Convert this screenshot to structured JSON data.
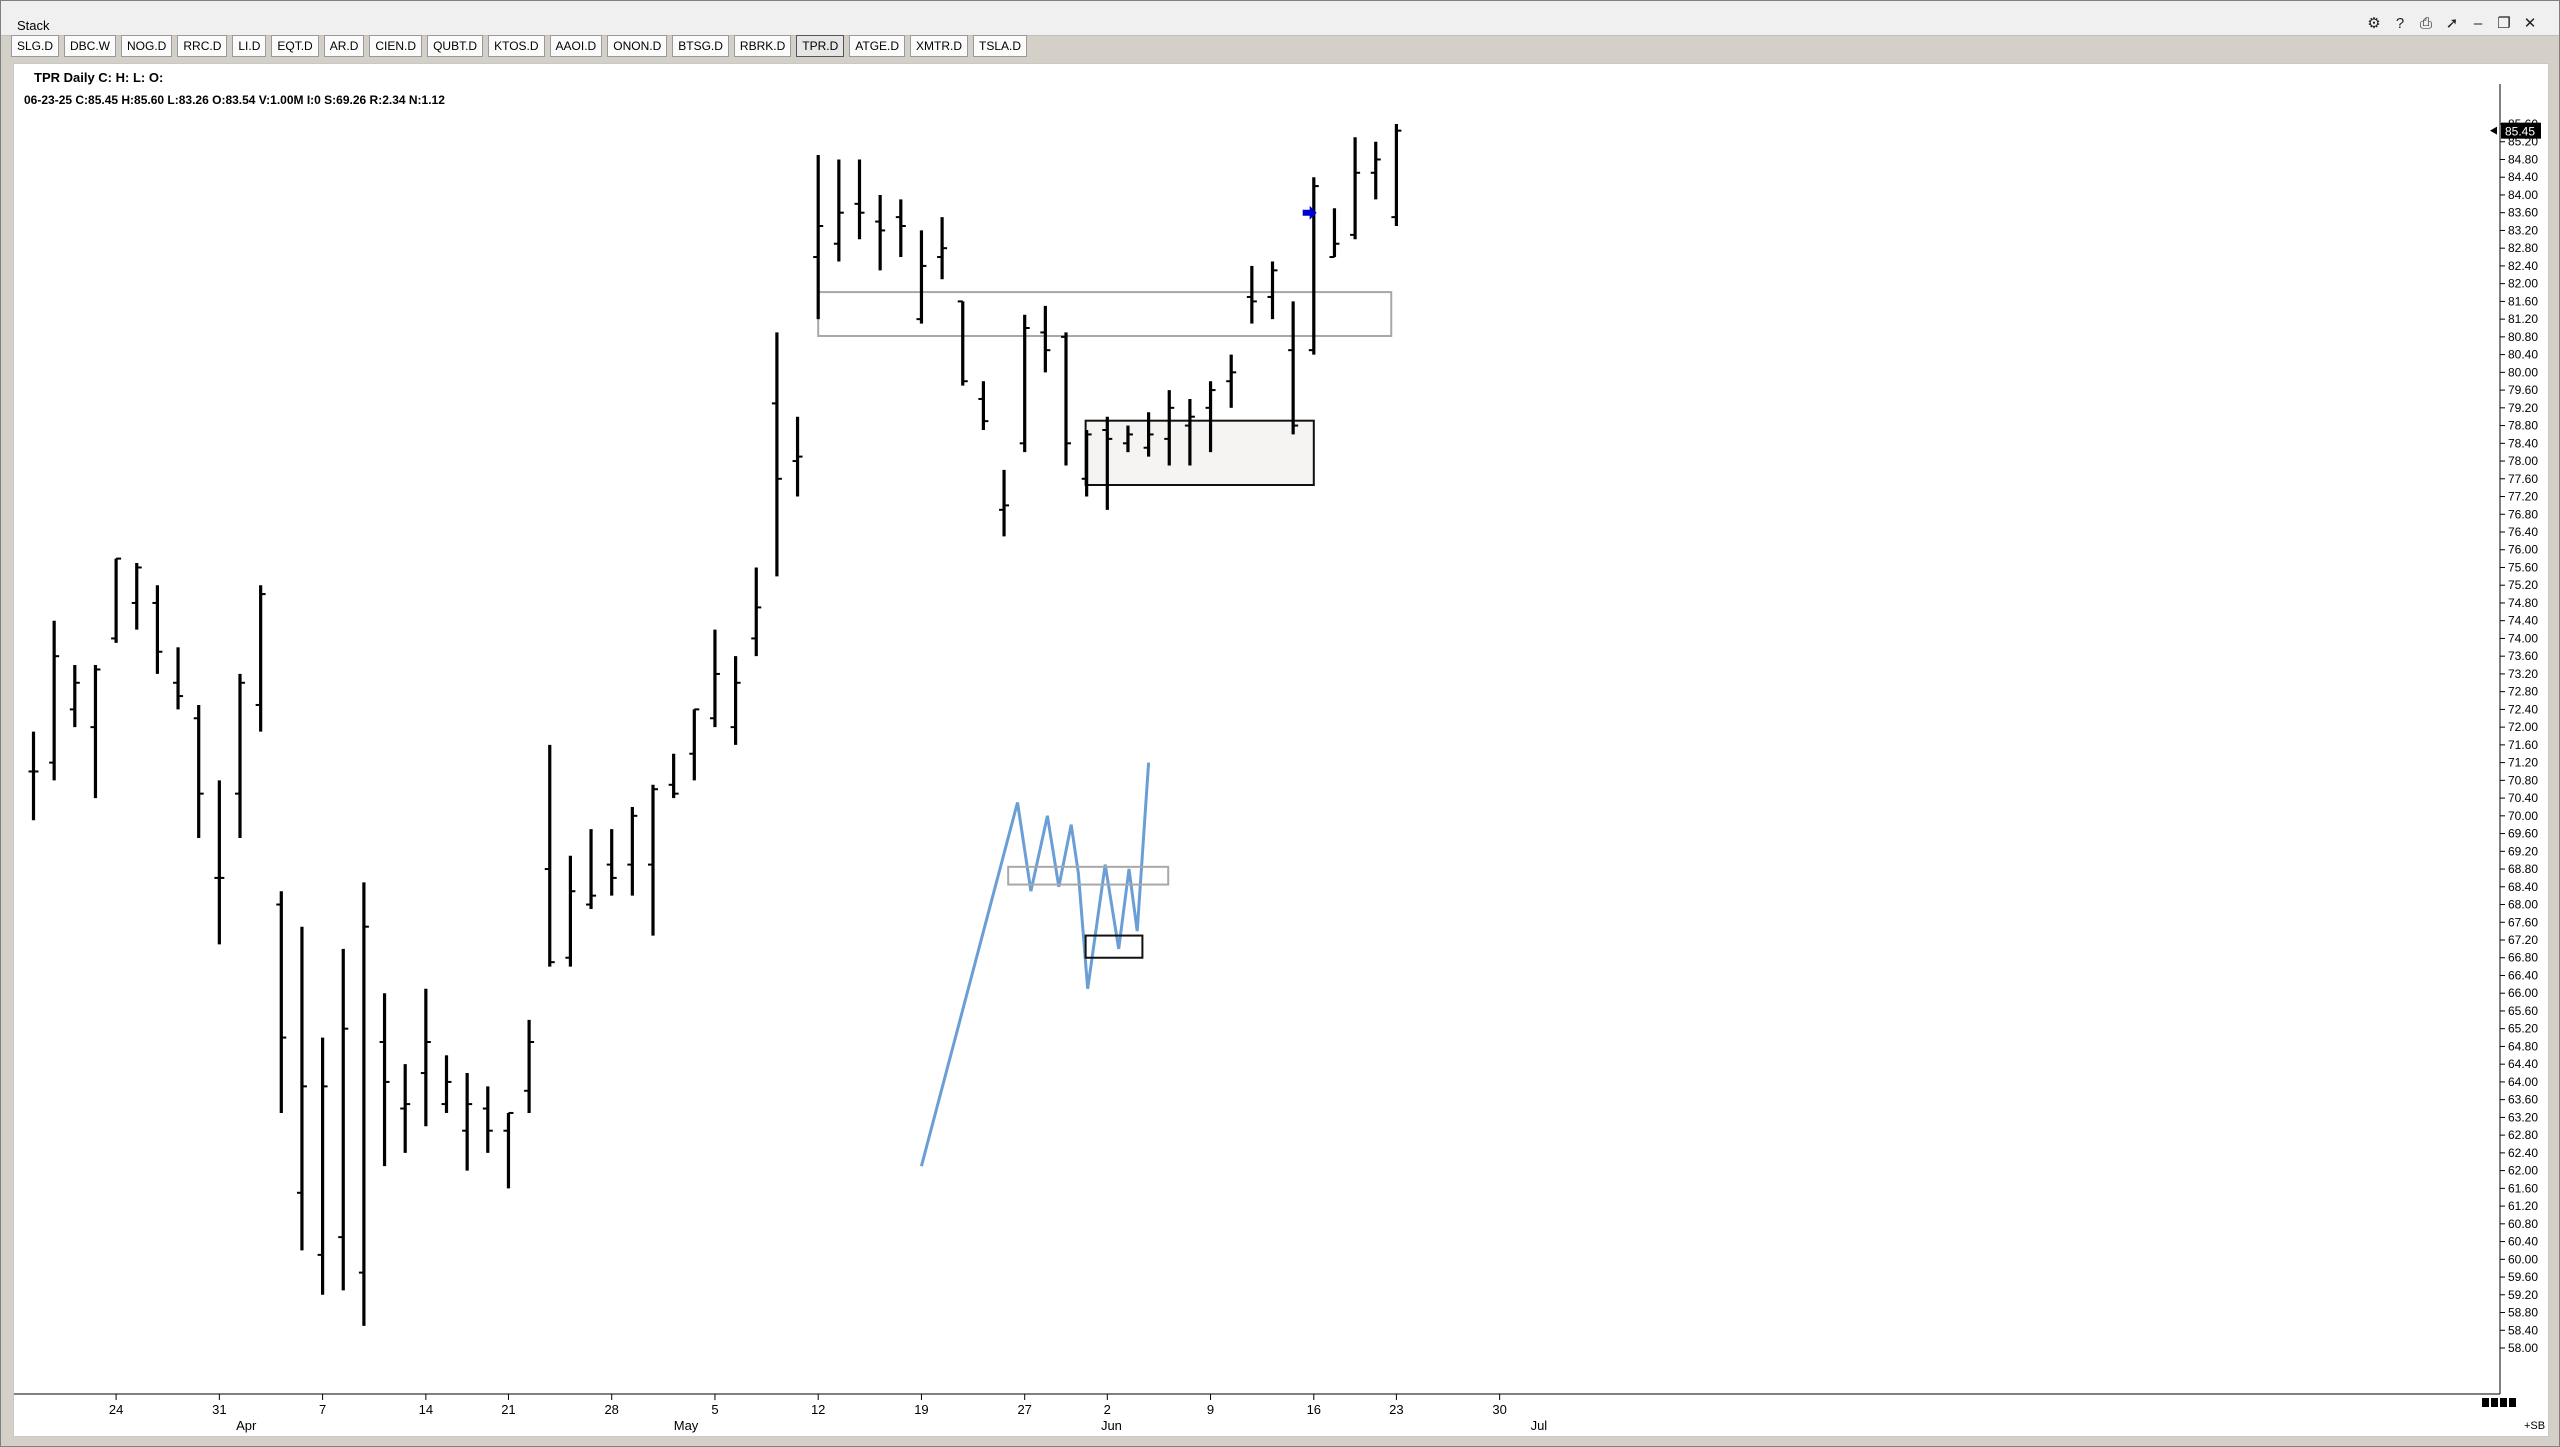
{
  "window": {
    "title": "Stack"
  },
  "toolbar_icons": [
    "settings-icon",
    "help-icon",
    "print-icon",
    "pin-icon",
    "minimize-icon",
    "restore-icon",
    "close-icon"
  ],
  "tabs": [
    {
      "label": "SLG.D"
    },
    {
      "label": "DBC.W"
    },
    {
      "label": "NOG.D"
    },
    {
      "label": "RRC.D"
    },
    {
      "label": "LI.D"
    },
    {
      "label": "EQT.D"
    },
    {
      "label": "AR.D"
    },
    {
      "label": "CIEN.D"
    },
    {
      "label": "QUBT.D"
    },
    {
      "label": "KTOS.D"
    },
    {
      "label": "AAOI.D"
    },
    {
      "label": "ONON.D"
    },
    {
      "label": "BTSG.D"
    },
    {
      "label": "RBRK.D"
    },
    {
      "label": "TPR.D",
      "active": true
    },
    {
      "label": "ATGE.D"
    },
    {
      "label": "XMTR.D"
    },
    {
      "label": "TSLA.D"
    }
  ],
  "chart_header": {
    "title": "TPR Daily C: H: L: O:",
    "stats": "06-23-25  C:85.45  H:85.60  L:83.26  O:83.54  V:1.00M  I:0  S:69.26  R:2.34  N:1.12"
  },
  "price_tag": "85.45",
  "scale_button": "+SB",
  "chart_data": {
    "type": "ohlc-bar",
    "ylim": [
      58.0,
      85.6
    ],
    "y_ticks": [
      "58.00",
      "58.40",
      "58.80",
      "59.20",
      "59.60",
      "60.00",
      "60.40",
      "60.80",
      "61.20",
      "61.60",
      "62.00",
      "62.40",
      "62.80",
      "63.20",
      "63.60",
      "64.00",
      "64.40",
      "64.80",
      "65.20",
      "65.60",
      "66.00",
      "66.40",
      "66.80",
      "67.20",
      "67.60",
      "68.00",
      "68.40",
      "68.80",
      "69.20",
      "69.60",
      "70.00",
      "70.40",
      "70.80",
      "71.20",
      "71.60",
      "72.00",
      "72.40",
      "72.80",
      "73.20",
      "73.60",
      "74.00",
      "74.40",
      "74.80",
      "75.20",
      "75.60",
      "76.00",
      "76.40",
      "76.80",
      "77.20",
      "77.60",
      "78.00",
      "78.40",
      "78.80",
      "79.20",
      "79.60",
      "80.00",
      "80.40",
      "80.80",
      "81.20",
      "81.60",
      "82.00",
      "82.40",
      "82.80",
      "83.20",
      "83.60",
      "84.00",
      "84.40",
      "84.80",
      "85.20",
      "85.60"
    ],
    "x_day_labels": [
      {
        "label": "24",
        "idx": 4
      },
      {
        "label": "31",
        "idx": 9
      },
      {
        "label": "7",
        "idx": 14
      },
      {
        "label": "14",
        "idx": 19
      },
      {
        "label": "21",
        "idx": 23
      },
      {
        "label": "28",
        "idx": 28
      },
      {
        "label": "5",
        "idx": 33
      },
      {
        "label": "12",
        "idx": 38
      },
      {
        "label": "19",
        "idx": 43
      },
      {
        "label": "27",
        "idx": 48
      },
      {
        "label": "2",
        "idx": 52
      },
      {
        "label": "9",
        "idx": 57
      },
      {
        "label": "16",
        "idx": 62
      },
      {
        "label": "23",
        "idx": 66
      },
      {
        "label": "30",
        "idx": 71
      }
    ],
    "x_month_labels": [
      {
        "label": "Apr",
        "idx": 10.3
      },
      {
        "label": "May",
        "idx": 31.6
      },
      {
        "label": "Jun",
        "idx": 52.2
      },
      {
        "label": "Jul",
        "idx": 72.9
      }
    ],
    "bars": [
      {
        "o": 71.0,
        "h": 71.9,
        "l": 69.9,
        "c": 71.0
      },
      {
        "o": 71.2,
        "h": 74.4,
        "l": 70.8,
        "c": 73.6
      },
      {
        "o": 72.4,
        "h": 73.4,
        "l": 72.0,
        "c": 73.0
      },
      {
        "o": 72.0,
        "h": 73.4,
        "l": 70.4,
        "c": 73.3
      },
      {
        "o": 74.0,
        "h": 75.8,
        "l": 73.9,
        "c": 75.8
      },
      {
        "o": 74.8,
        "h": 75.7,
        "l": 74.2,
        "c": 75.6
      },
      {
        "o": 74.8,
        "h": 75.2,
        "l": 73.2,
        "c": 73.7
      },
      {
        "o": 73.0,
        "h": 73.8,
        "l": 72.4,
        "c": 72.7
      },
      {
        "o": 72.2,
        "h": 72.5,
        "l": 69.5,
        "c": 70.5
      },
      {
        "o": 68.6,
        "h": 70.8,
        "l": 67.1,
        "c": 68.6
      },
      {
        "o": 70.5,
        "h": 73.2,
        "l": 69.5,
        "c": 73.0
      },
      {
        "o": 72.5,
        "h": 75.2,
        "l": 71.9,
        "c": 75.0
      },
      {
        "o": 68.0,
        "h": 68.3,
        "l": 63.3,
        "c": 65.0
      },
      {
        "o": 61.5,
        "h": 67.5,
        "l": 60.2,
        "c": 63.9
      },
      {
        "o": 60.1,
        "h": 65.0,
        "l": 59.2,
        "c": 63.9
      },
      {
        "o": 60.5,
        "h": 67.0,
        "l": 59.3,
        "c": 65.2
      },
      {
        "o": 59.7,
        "h": 68.5,
        "l": 58.5,
        "c": 67.5
      },
      {
        "o": 64.9,
        "h": 66.0,
        "l": 62.1,
        "c": 64.0
      },
      {
        "o": 63.4,
        "h": 64.4,
        "l": 62.4,
        "c": 63.5
      },
      {
        "o": 64.2,
        "h": 66.1,
        "l": 63.0,
        "c": 64.9
      },
      {
        "o": 63.5,
        "h": 64.6,
        "l": 63.3,
        "c": 64.0
      },
      {
        "o": 62.9,
        "h": 64.2,
        "l": 62.0,
        "c": 63.5
      },
      {
        "o": 63.4,
        "h": 63.9,
        "l": 62.4,
        "c": 62.9
      },
      {
        "o": 62.9,
        "h": 63.3,
        "l": 61.6,
        "c": 63.3
      },
      {
        "o": 63.8,
        "h": 65.4,
        "l": 63.3,
        "c": 64.9
      },
      {
        "o": 68.8,
        "h": 71.6,
        "l": 66.6,
        "c": 66.7
      },
      {
        "o": 66.8,
        "h": 69.1,
        "l": 66.6,
        "c": 68.3
      },
      {
        "o": 68.0,
        "h": 69.7,
        "l": 67.9,
        "c": 68.2
      },
      {
        "o": 68.9,
        "h": 69.7,
        "l": 68.2,
        "c": 68.6
      },
      {
        "o": 68.9,
        "h": 70.2,
        "l": 68.2,
        "c": 70.0
      },
      {
        "o": 68.9,
        "h": 70.7,
        "l": 67.3,
        "c": 70.6
      },
      {
        "o": 70.7,
        "h": 71.4,
        "l": 70.4,
        "c": 70.5
      },
      {
        "o": 71.4,
        "h": 72.4,
        "l": 70.8,
        "c": 72.4
      },
      {
        "o": 72.2,
        "h": 74.2,
        "l": 72.0,
        "c": 73.2
      },
      {
        "o": 72.0,
        "h": 73.6,
        "l": 71.6,
        "c": 73.0
      },
      {
        "o": 74.0,
        "h": 75.6,
        "l": 73.6,
        "c": 74.7
      },
      {
        "o": 79.3,
        "h": 80.9,
        "l": 75.4,
        "c": 77.6
      },
      {
        "o": 78.0,
        "h": 79.0,
        "l": 77.2,
        "c": 78.1
      },
      {
        "o": 82.6,
        "h": 84.9,
        "l": 81.2,
        "c": 83.3
      },
      {
        "o": 82.9,
        "h": 84.8,
        "l": 82.5,
        "c": 83.6
      },
      {
        "o": 83.8,
        "h": 84.8,
        "l": 83.0,
        "c": 83.6
      },
      {
        "o": 83.4,
        "h": 84.0,
        "l": 82.3,
        "c": 83.2
      },
      {
        "o": 83.5,
        "h": 83.9,
        "l": 82.6,
        "c": 83.3
      },
      {
        "o": 81.2,
        "h": 83.2,
        "l": 81.1,
        "c": 82.4
      },
      {
        "o": 82.6,
        "h": 83.5,
        "l": 82.1,
        "c": 82.8
      },
      {
        "o": 81.6,
        "h": 81.6,
        "l": 79.7,
        "c": 79.8
      },
      {
        "o": 79.4,
        "h": 79.8,
        "l": 78.7,
        "c": 78.9
      },
      {
        "o": 76.9,
        "h": 77.8,
        "l": 76.3,
        "c": 77.0
      },
      {
        "o": 78.4,
        "h": 81.3,
        "l": 78.2,
        "c": 81.0
      },
      {
        "o": 80.9,
        "h": 81.5,
        "l": 80.0,
        "c": 80.5
      },
      {
        "o": 80.8,
        "h": 80.9,
        "l": 77.9,
        "c": 78.4
      },
      {
        "o": 77.6,
        "h": 78.7,
        "l": 77.2,
        "c": 78.6
      },
      {
        "o": 78.7,
        "h": 79.0,
        "l": 76.9,
        "c": 78.5
      },
      {
        "o": 78.4,
        "h": 78.8,
        "l": 78.2,
        "c": 78.6
      },
      {
        "o": 78.3,
        "h": 79.1,
        "l": 78.1,
        "c": 78.6
      },
      {
        "o": 78.5,
        "h": 79.6,
        "l": 77.9,
        "c": 79.2
      },
      {
        "o": 78.8,
        "h": 79.4,
        "l": 77.9,
        "c": 79.0
      },
      {
        "o": 79.2,
        "h": 79.8,
        "l": 78.2,
        "c": 79.6
      },
      {
        "o": 79.8,
        "h": 80.4,
        "l": 79.2,
        "c": 80.0
      },
      {
        "o": 81.7,
        "h": 82.4,
        "l": 81.1,
        "c": 81.6
      },
      {
        "o": 81.7,
        "h": 82.5,
        "l": 81.2,
        "c": 82.3
      },
      {
        "o": 80.5,
        "h": 81.6,
        "l": 78.6,
        "c": 78.8
      },
      {
        "o": 80.5,
        "h": 84.4,
        "l": 80.4,
        "c": 84.2
      },
      {
        "o": 82.6,
        "h": 83.7,
        "l": 82.6,
        "c": 82.9
      },
      {
        "o": 83.1,
        "h": 85.3,
        "l": 83.0,
        "c": 84.5
      },
      {
        "o": 84.5,
        "h": 85.2,
        "l": 83.9,
        "c": 84.8
      },
      {
        "o": 83.5,
        "h": 85.6,
        "l": 83.3,
        "c": 85.45
      }
    ],
    "zones": [
      {
        "x1": 38,
        "x2": 65.75,
        "y1": 81.81,
        "y2": 80.82,
        "style": "outline-gray"
      },
      {
        "x1": 50.95,
        "x2": 62,
        "y1": 78.91,
        "y2": 77.46,
        "style": "filled-dark"
      }
    ],
    "arrow": {
      "idx": 61.8,
      "y": 83.6,
      "color": "#0000cc"
    },
    "inset_path": {
      "color": "#6a9ed6",
      "points": [
        [
          43,
          62.1
        ],
        [
          47.65,
          70.3
        ],
        [
          48.3,
          68.3
        ],
        [
          49.1,
          70.0
        ],
        [
          49.65,
          68.4
        ],
        [
          50.25,
          69.8
        ],
        [
          50.6,
          68.7
        ],
        [
          51.05,
          66.1
        ],
        [
          51.9,
          68.9
        ],
        [
          52.55,
          67.0
        ],
        [
          53.05,
          68.8
        ],
        [
          53.45,
          67.4
        ],
        [
          54.0,
          71.2
        ]
      ]
    },
    "inset_zones": [
      {
        "x1": 47.2,
        "x2": 54.95,
        "y1": 68.85,
        "y2": 68.45,
        "style": "outline-gray"
      },
      {
        "x1": 50.95,
        "x2": 53.7,
        "y1": 67.3,
        "y2": 66.8,
        "style": "outline-dark"
      }
    ]
  }
}
